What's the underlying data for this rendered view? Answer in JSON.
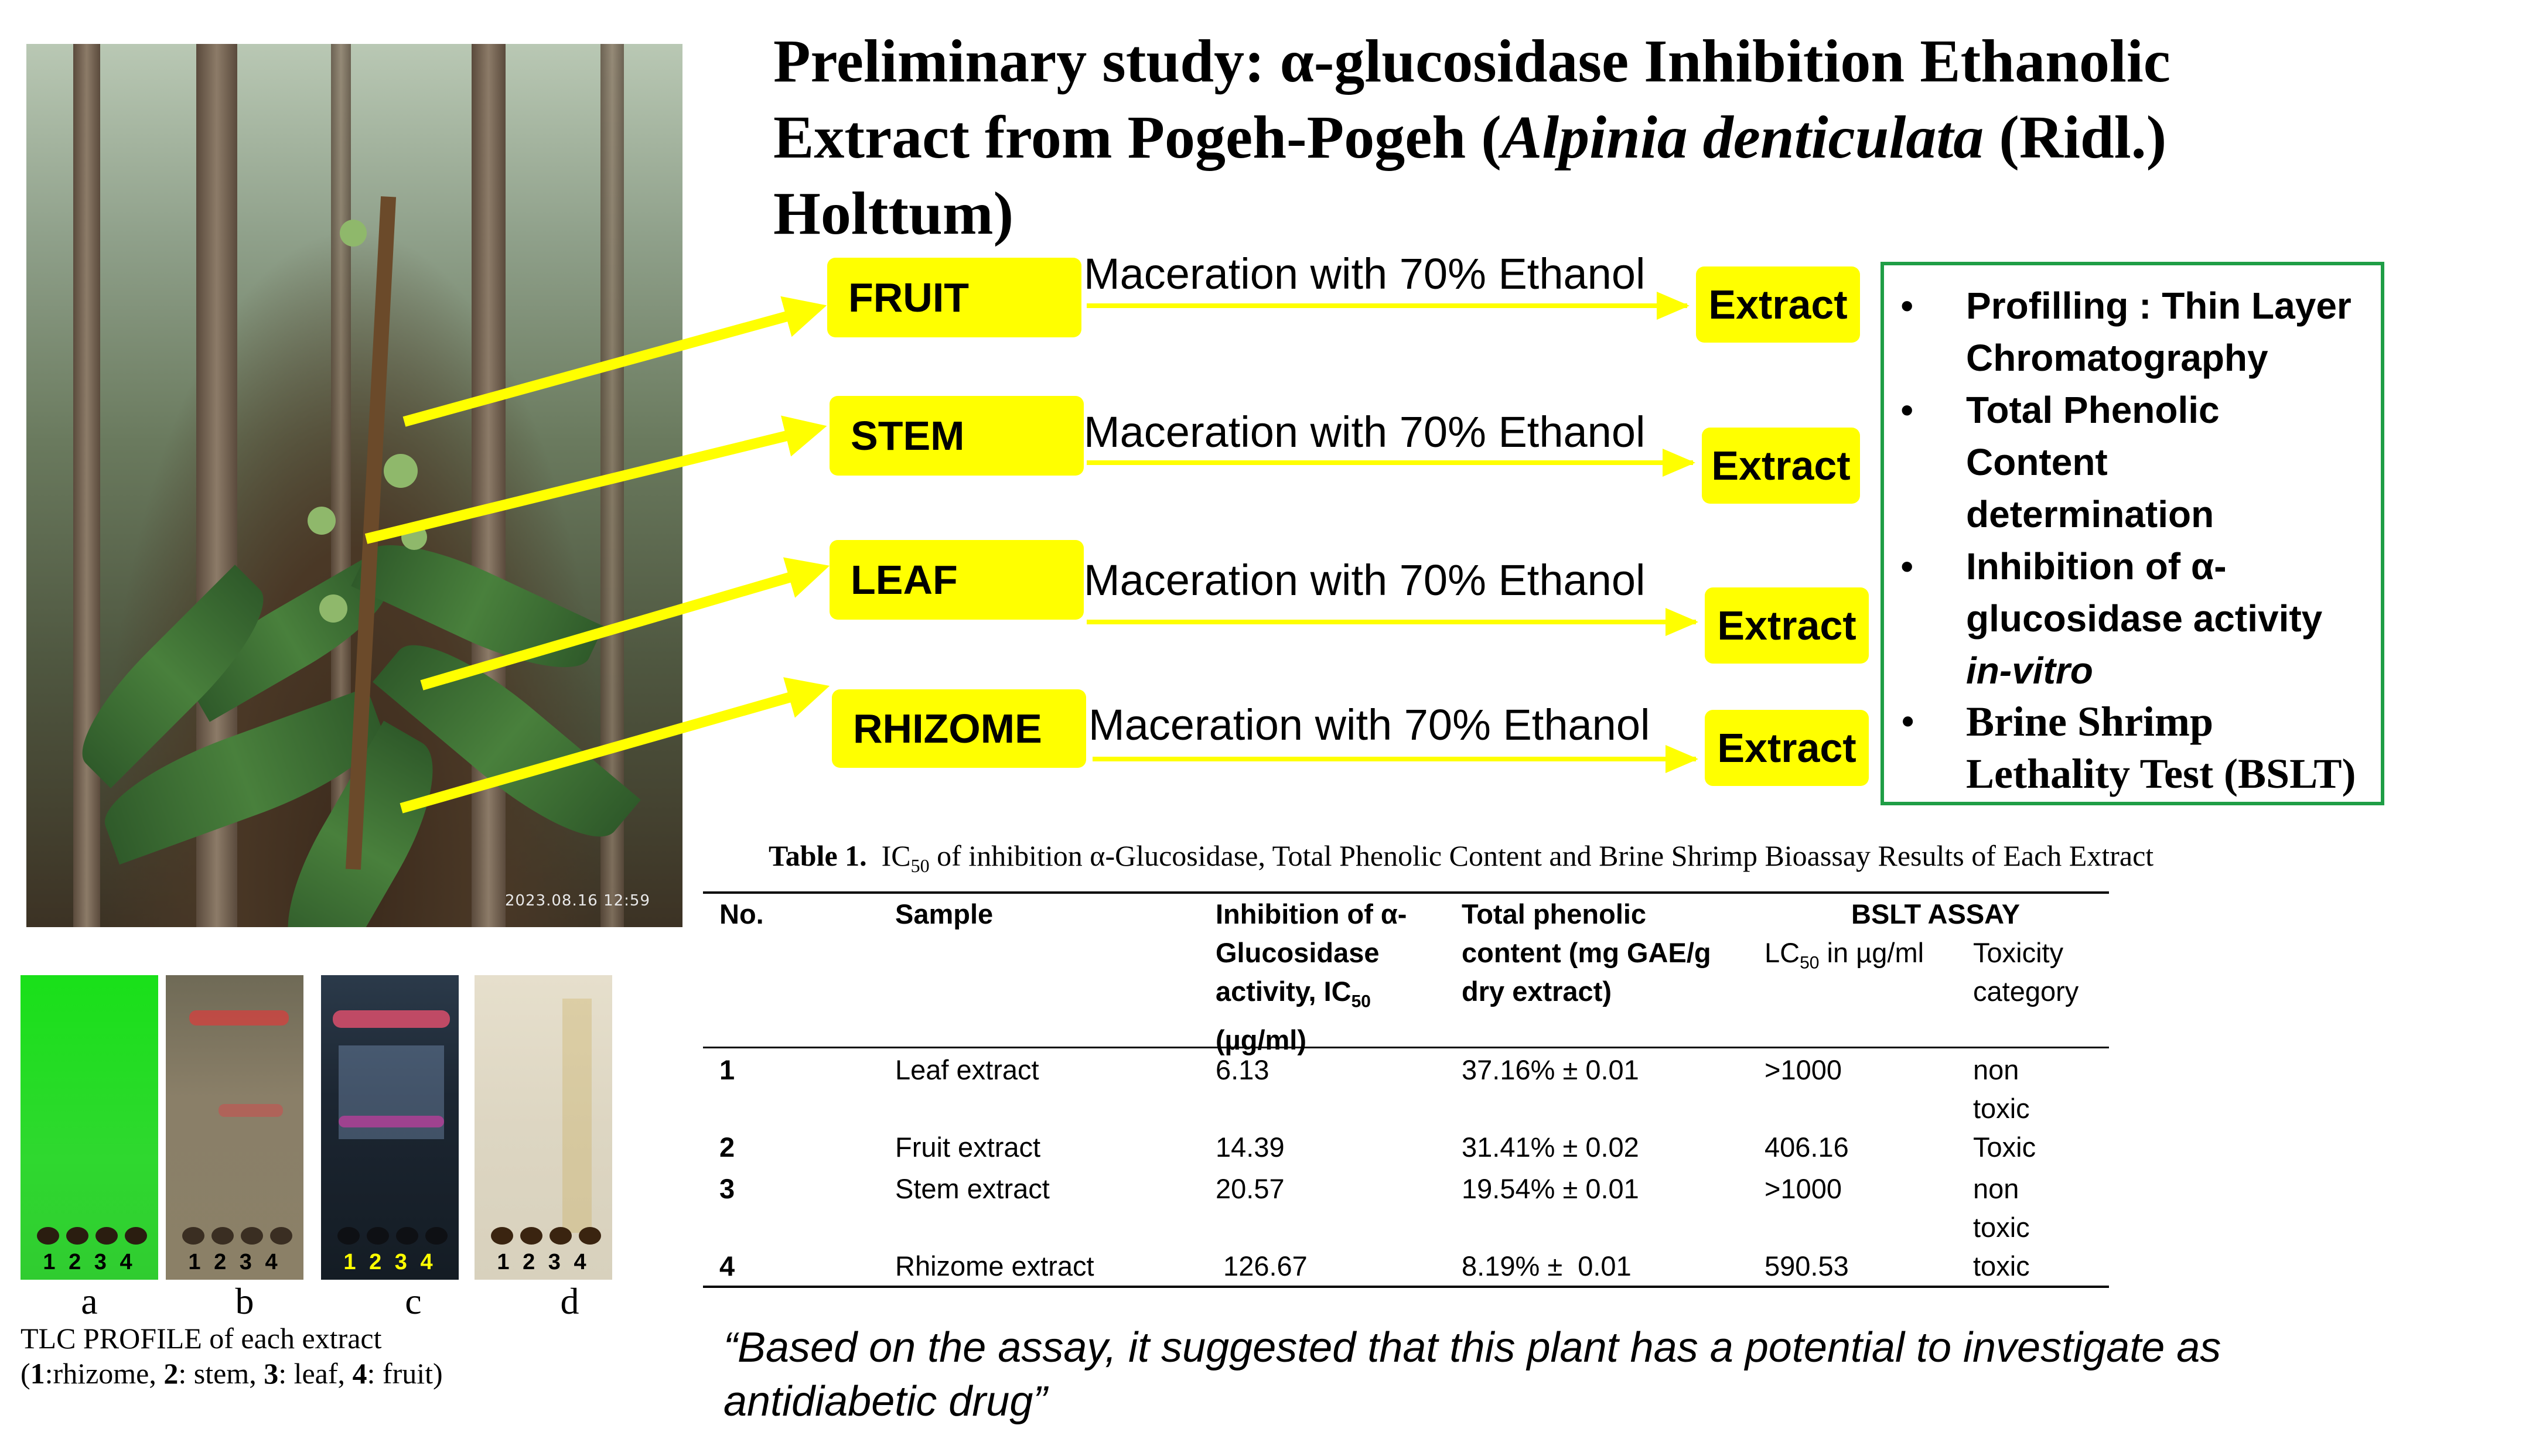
{
  "title": {
    "line1": "Preliminary study: α-glucosidase Inhibition Ethanolic",
    "line2_prefix": "Extract from Pogeh-Pogeh (",
    "line2_italic": "Alpinia denticulata",
    "line2_suffix": " (Ridl.)",
    "line3": "Holttum)"
  },
  "photo": {
    "timestamp": "2023.08.16 12:59"
  },
  "flow": {
    "parts": [
      "FRUIT",
      "STEM",
      "LEAF",
      "RHIZOME"
    ],
    "method": "Maceration with 70% Ethanol",
    "result": "Extract",
    "accent_color": "#ffff00"
  },
  "analyses": {
    "bullet": "•",
    "items": [
      [
        "Profilling : Thin Layer",
        "Chromatography"
      ],
      [
        "Total Phenolic",
        "Content",
        "determination"
      ],
      [
        "Inhibition of α-",
        "glucosidase activity"
      ],
      [
        "Brine Shrimp",
        "Lethality Test (BSLT)"
      ]
    ],
    "item3_italic": "in-vitro",
    "border_color": "#1f9e46"
  },
  "tlc": {
    "lane_numbers": [
      "1",
      "2",
      "3",
      "4"
    ],
    "plate_labels": [
      "a",
      "b",
      "c",
      "d"
    ],
    "caption_line1": "TLC PROFILE of each extract",
    "legend": [
      {
        "num": "1",
        "text": ":rhizome, "
      },
      {
        "num": "2",
        "text": ": stem, "
      },
      {
        "num": "3",
        "text": ": leaf, "
      },
      {
        "num": "4",
        "text": ": fruit)"
      }
    ]
  },
  "table": {
    "caption_bold": "Table 1.",
    "caption_ic": "IC",
    "caption_sub": "50",
    "caption_rest": " of inhibition α-Glucosidase, Total Phenolic Content and Brine Shrimp Bioassay Results of Each Extract",
    "headers": {
      "no": "No.",
      "sample": "Sample",
      "inhibition": [
        "Inhibition of α-",
        "Glucosidase",
        "activity, IC",
        "(µg/ml)"
      ],
      "inhibition_sub": "50",
      "phenolic": [
        "Total phenolic",
        "content (mg GAE/g",
        "dry extract)"
      ],
      "bslt": "BSLT ASSAY",
      "lc": "LC",
      "lc_sub": "50",
      "lc_rest": " in µg/ml",
      "toxicity": [
        "Toxicity",
        "category"
      ]
    },
    "rows": [
      {
        "no": "1",
        "sample": "Leaf extract",
        "ic50": "6.13",
        "phenolic": "37.16% ± 0.01",
        "lc50": ">1000",
        "tox": [
          "non",
          "toxic"
        ]
      },
      {
        "no": "2",
        "sample": "Fruit extract",
        "ic50": "14.39",
        "phenolic": "31.41% ± 0.02",
        "lc50": "406.16",
        "tox": [
          "Toxic"
        ]
      },
      {
        "no": "3",
        "sample": "Stem extract",
        "ic50": "20.57",
        "phenolic": "19.54% ± 0.01",
        "lc50": ">1000",
        "tox": [
          "non",
          "toxic"
        ]
      },
      {
        "no": "4",
        "sample": "Rhizome extract",
        "ic50": " 126.67",
        "phenolic": "8.19% ±  0.01",
        "lc50": "590.53",
        "tox": [
          "toxic"
        ]
      }
    ]
  },
  "conclusion": {
    "line1": "“Based on the assay, it suggested that this plant has a potential to investigate as",
    "line2": "antidiabetic drug”"
  }
}
